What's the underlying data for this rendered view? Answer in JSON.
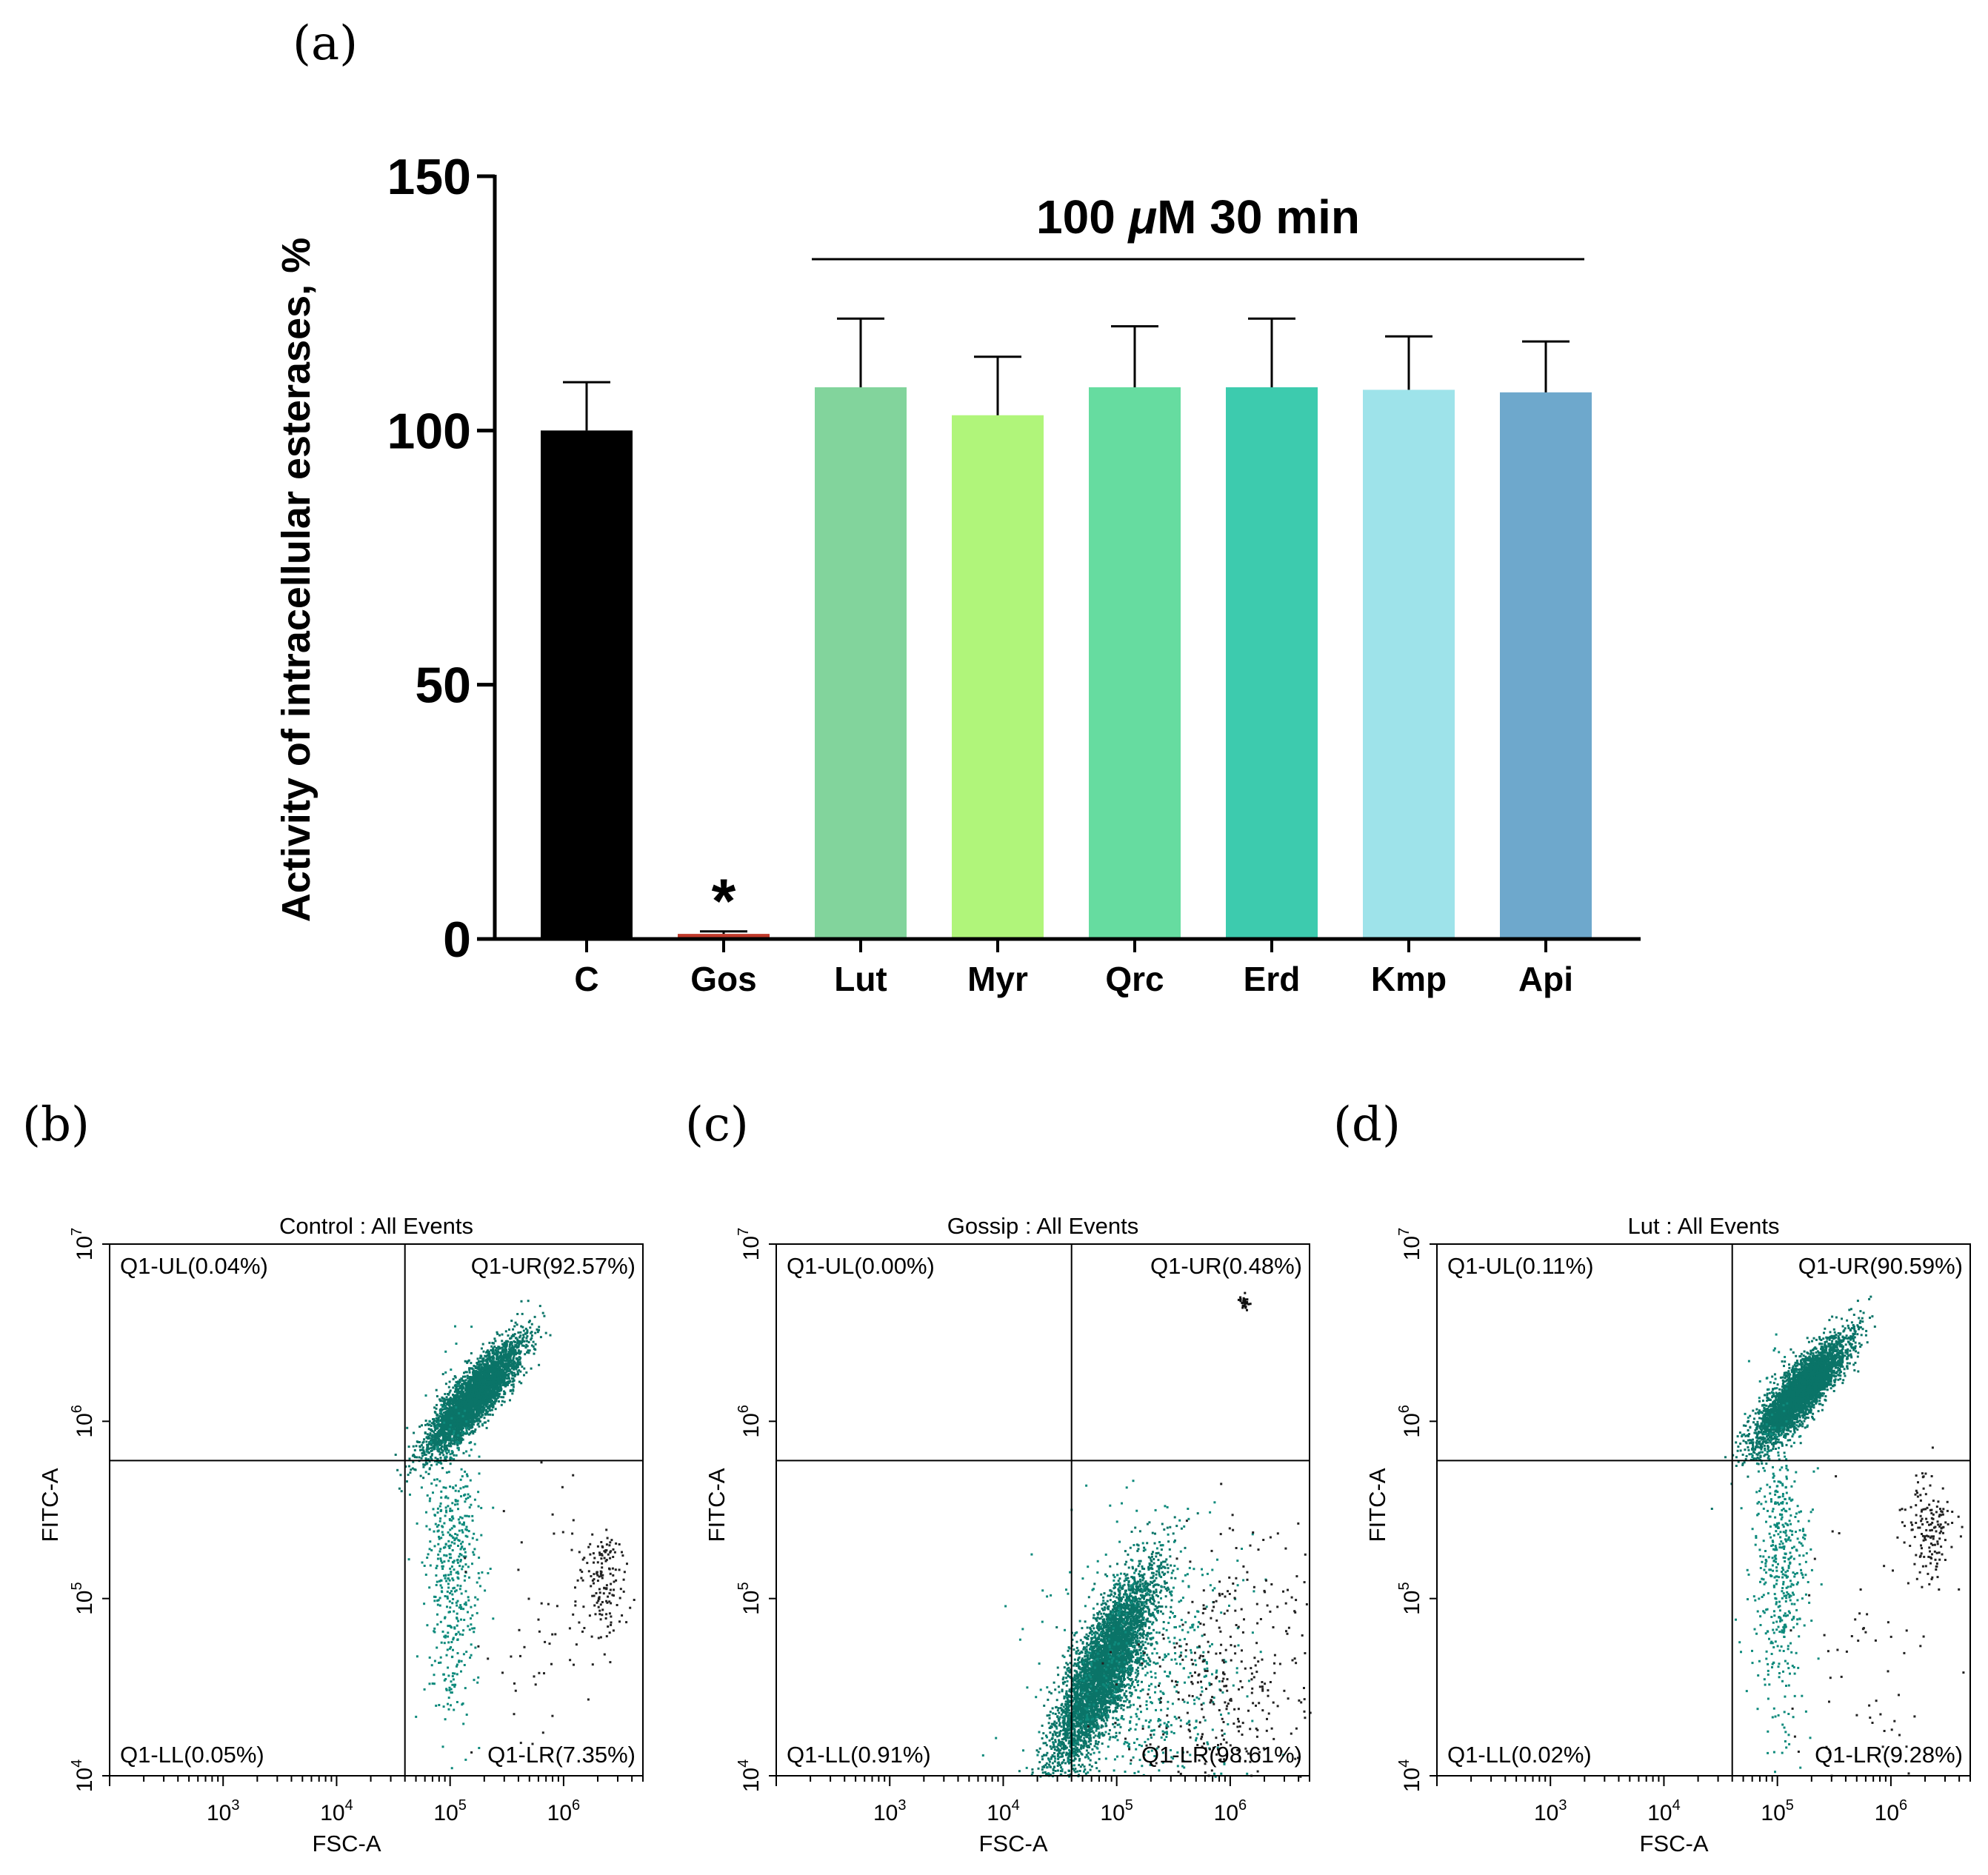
{
  "panel_labels": {
    "a": "(a)",
    "b": "(b)",
    "c": "(c)",
    "d": "(d)"
  },
  "colors": {
    "axis": "#000000",
    "event_teal": "#0e8a7c",
    "event_dense": "#0a7468",
    "event_black": "#222222"
  },
  "chart_data": [
    {
      "id": "a",
      "type": "bar",
      "title": "",
      "xlabel": "",
      "ylabel": "Activity of intracellular esterases, %",
      "ylim": [
        0,
        150
      ],
      "yticks": [
        0,
        50,
        100,
        150
      ],
      "categories": [
        "C",
        "Gos",
        "Lut",
        "Myr",
        "Qrc",
        "Erd",
        "Kmp",
        "Api"
      ],
      "values": [
        100,
        1,
        108.5,
        103,
        108.5,
        108.5,
        108,
        107.5
      ],
      "errors": [
        9.5,
        0.5,
        13.5,
        11.5,
        12,
        13.5,
        10.5,
        10
      ],
      "colors": [
        "#000000",
        "#c0392b",
        "#82d49c",
        "#b0f57a",
        "#66dca0",
        "#3dcbae",
        "#9ee3ea",
        "#6ea8cc"
      ],
      "significance": [
        {
          "category": "Gos",
          "label": "*"
        }
      ],
      "bracket": {
        "label_parts": [
          "100 ",
          "μ",
          "M 30 min"
        ],
        "from": "Lut",
        "to": "Api"
      }
    },
    {
      "id": "b",
      "type": "scatter",
      "title": "Control : All Events",
      "xlabel": "FSC-A",
      "ylabel": "FITC-A",
      "x_scale": "log",
      "y_scale": "log",
      "xlim": [
        100,
        5000000
      ],
      "ylim": [
        10000,
        10000000
      ],
      "x_ticks": [
        {
          "base": "10",
          "exp": "3",
          "value": 1000
        },
        {
          "base": "10",
          "exp": "4",
          "value": 10000
        },
        {
          "base": "10",
          "exp": "5",
          "value": 100000
        },
        {
          "base": "10",
          "exp": "6",
          "value": 1000000
        }
      ],
      "y_ticks": [
        {
          "base": "10",
          "exp": "4",
          "value": 10000
        },
        {
          "base": "10",
          "exp": "5",
          "value": 100000
        },
        {
          "base": "10",
          "exp": "6",
          "value": 1000000
        },
        {
          "base": "10",
          "exp": "7",
          "value": 10000000
        }
      ],
      "gate": {
        "x": 40000,
        "y": 600000
      },
      "quadrants": {
        "UL": "Q1-UL(0.04%)",
        "UR": "Q1-UR(92.57%)",
        "LL": "Q1-LL(0.05%)",
        "LR": "Q1-LR(7.35%)"
      },
      "populations": [
        {
          "cx": 160000,
          "cy": 1400000,
          "sx": 0.2,
          "sy": 0.15,
          "corr": 0.85,
          "n": 4200,
          "color": "#0a7468"
        },
        {
          "cx": 105000,
          "cy": 180000,
          "sx": 0.12,
          "sy": 0.45,
          "corr": 0,
          "n": 520,
          "color": "#0e8a7c"
        },
        {
          "cx": 2200000,
          "cy": 120000,
          "sx": 0.1,
          "sy": 0.15,
          "corr": 0,
          "n": 150,
          "color": "#222222"
        },
        {
          "cx": 700000,
          "cy": 50000,
          "sx": 0.35,
          "sy": 0.45,
          "corr": 0,
          "n": 60,
          "color": "#222222"
        }
      ]
    },
    {
      "id": "c",
      "type": "scatter",
      "title": "Gossip : All Events",
      "xlabel": "FSC-A",
      "ylabel": "FITC-A",
      "x_scale": "log",
      "y_scale": "log",
      "xlim": [
        100,
        5000000
      ],
      "ylim": [
        10000,
        10000000
      ],
      "x_ticks": [
        {
          "base": "10",
          "exp": "3",
          "value": 1000
        },
        {
          "base": "10",
          "exp": "4",
          "value": 10000
        },
        {
          "base": "10",
          "exp": "5",
          "value": 100000
        },
        {
          "base": "10",
          "exp": "6",
          "value": 1000000
        }
      ],
      "y_ticks": [
        {
          "base": "10",
          "exp": "4",
          "value": 10000
        },
        {
          "base": "10",
          "exp": "5",
          "value": 100000
        },
        {
          "base": "10",
          "exp": "6",
          "value": 1000000
        },
        {
          "base": "10",
          "exp": "7",
          "value": 10000000
        }
      ],
      "gate": {
        "x": 40000,
        "y": 600000
      },
      "quadrants": {
        "UL": "Q1-UL(0.00%)",
        "UR": "Q1-UR(0.48%)",
        "LL": "Q1-LL(0.91%)",
        "LR": "Q1-LR(98.61%)"
      },
      "populations": [
        {
          "cx": 75000,
          "cy": 40000,
          "sx": 0.22,
          "sy": 0.27,
          "corr": 0.8,
          "n": 4800,
          "color": "#0a7468"
        },
        {
          "cx": 160000,
          "cy": 30000,
          "sx": 0.45,
          "sy": 0.45,
          "corr": 0.2,
          "n": 700,
          "color": "#0e8a7c"
        },
        {
          "cx": 800000,
          "cy": 25000,
          "sx": 0.4,
          "sy": 0.45,
          "corr": 0.2,
          "n": 420,
          "color": "#222222"
        },
        {
          "cx": 1300000,
          "cy": 4800000,
          "sx": 0.02,
          "sy": 0.02,
          "corr": 0,
          "n": 30,
          "color": "#111111"
        }
      ]
    },
    {
      "id": "d",
      "type": "scatter",
      "title": "Lut : All Events",
      "xlabel": "FSC-A",
      "ylabel": "FITC-A",
      "x_scale": "log",
      "y_scale": "log",
      "xlim": [
        100,
        5000000
      ],
      "ylim": [
        10000,
        10000000
      ],
      "x_ticks": [
        {
          "base": "10",
          "exp": "3",
          "value": 1000
        },
        {
          "base": "10",
          "exp": "4",
          "value": 10000
        },
        {
          "base": "10",
          "exp": "5",
          "value": 100000
        },
        {
          "base": "10",
          "exp": "6",
          "value": 1000000
        }
      ],
      "y_ticks": [
        {
          "base": "10",
          "exp": "4",
          "value": 10000
        },
        {
          "base": "10",
          "exp": "5",
          "value": 100000
        },
        {
          "base": "10",
          "exp": "6",
          "value": 1000000
        },
        {
          "base": "10",
          "exp": "7",
          "value": 10000000
        }
      ],
      "gate": {
        "x": 40000,
        "y": 600000
      },
      "quadrants": {
        "UL": "Q1-UL(0.11%)",
        "UR": "Q1-UR(90.59%)",
        "LL": "Q1-LL(0.02%)",
        "LR": "Q1-LR(9.28%)"
      },
      "populations": [
        {
          "cx": 160000,
          "cy": 1500000,
          "sx": 0.2,
          "sy": 0.15,
          "corr": 0.85,
          "n": 4200,
          "color": "#0a7468"
        },
        {
          "cx": 105000,
          "cy": 170000,
          "sx": 0.12,
          "sy": 0.45,
          "corr": 0,
          "n": 520,
          "color": "#0e8a7c"
        },
        {
          "cx": 2100000,
          "cy": 250000,
          "sx": 0.1,
          "sy": 0.15,
          "corr": 0,
          "n": 150,
          "color": "#222222"
        },
        {
          "cx": 700000,
          "cy": 50000,
          "sx": 0.35,
          "sy": 0.45,
          "corr": 0,
          "n": 60,
          "color": "#222222"
        }
      ]
    }
  ]
}
